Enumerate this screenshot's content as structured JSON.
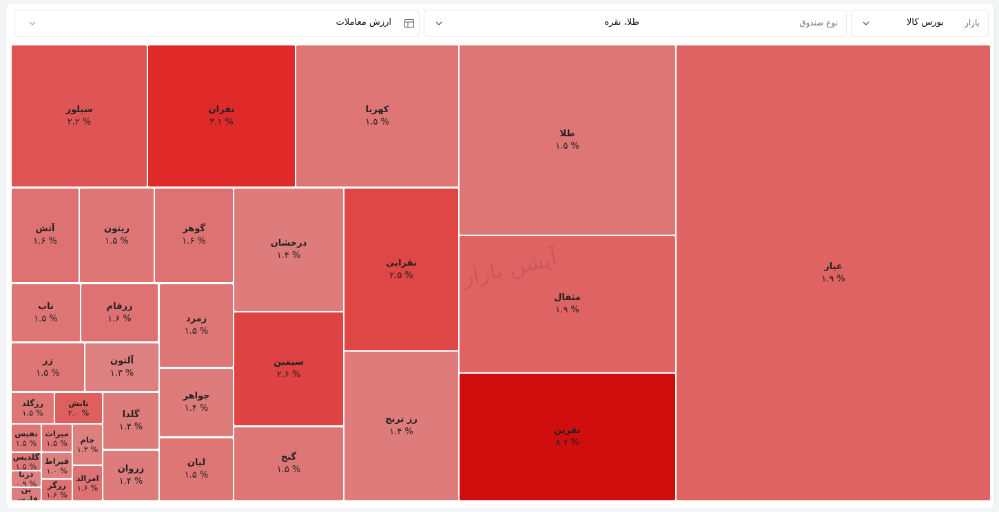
{
  "filters": [
    {
      "label": "بازار",
      "value": "بورس کالا"
    },
    {
      "label": "نوع صندوق",
      "value": "طلا، نقره"
    },
    {
      "value": "ارزش معاملات"
    }
  ],
  "watermark": "آپشن بازار",
  "chart_data": {
    "type": "treemap",
    "categories": [
      "عیار",
      "طلا",
      "مثقال",
      "نقرین",
      "کهربا",
      "نقران",
      "سیلور",
      "نقرابی",
      "رز ترنج",
      "درخشان",
      "سیمین",
      "گنج",
      "گوهر",
      "ریتون",
      "آتش",
      "زمرد",
      "جواهر",
      "لیان",
      "زرفام",
      "ناب",
      "آلتون",
      "زر",
      "گلدا",
      "زروان",
      "تابش",
      "رزگلد",
      "جام",
      "امرالد",
      "میراث",
      "نفیس",
      "قیراط",
      "زرگر",
      "گلدیس",
      "درنا",
      "ین فارس"
    ],
    "values": [
      1.9,
      1.5,
      1.9,
      8.7,
      1.5,
      3.1,
      2.2,
      2.5,
      1.4,
      1.4,
      2.6,
      1.5,
      1.6,
      1.5,
      1.6,
      1.5,
      1.4,
      1.5,
      1.6,
      1.5,
      1.3,
      1.5,
      1.4,
      1.4,
      2.0,
      1.5,
      1.3,
      1.6,
      1.5,
      1.5,
      1.0,
      1.6,
      1.5,
      0.9,
      null
    ],
    "value_labels": [
      "۱.۹ %",
      "۱.۵ %",
      "۱.۹ %",
      "۸.۷ %",
      "۱.۵ %",
      "۳.۱ %",
      "۲.۲ %",
      "۲.۵ %",
      "۱.۴ %",
      "۱.۴ %",
      "۲.۶ %",
      "۱.۵ %",
      "۱.۶ %",
      "۱.۵ %",
      "۱.۶ %",
      "۱.۵ %",
      "۱.۴ %",
      "۱.۵ %",
      "۱.۶ %",
      "۱.۵ %",
      "۱.۳ %",
      "۱.۵ %",
      "۱.۴ %",
      "۱.۴ %",
      "۲.۰ %",
      "۱.۵ %",
      "۱.۳ %",
      "۱.۶ %",
      "۱.۵ %",
      "۱.۵ %",
      "۱.۰ %",
      "۱.۶ %",
      "۱.۵ %",
      "۰.۹ %",
      null
    ]
  }
}
